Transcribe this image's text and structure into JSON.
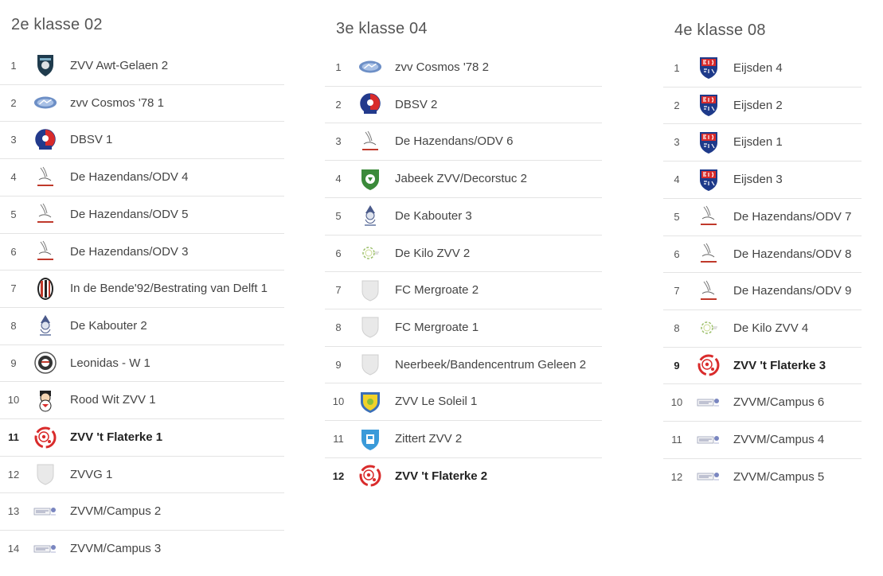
{
  "columns": [
    {
      "title": "2e klasse 02",
      "rows": [
        {
          "pos": "1",
          "team": "ZVV Awt-Gelaen 2",
          "logo": "shield-dark-icon"
        },
        {
          "pos": "2",
          "team": "zvv Cosmos '78 1",
          "logo": "blue-oval-icon"
        },
        {
          "pos": "3",
          "team": "DBSV 1",
          "logo": "red-blue-round-icon"
        },
        {
          "pos": "4",
          "team": "De Hazendans/ODV 4",
          "logo": "hare-icon"
        },
        {
          "pos": "5",
          "team": "De Hazendans/ODV 5",
          "logo": "hare-icon"
        },
        {
          "pos": "6",
          "team": "De Hazendans/ODV 3",
          "logo": "hare-icon"
        },
        {
          "pos": "7",
          "team": "In de Bende'92/Bestrating van Delft 1",
          "logo": "striped-oval-icon"
        },
        {
          "pos": "8",
          "team": "De Kabouter 2",
          "logo": "gnome-icon"
        },
        {
          "pos": "9",
          "team": "Leonidas - W 1",
          "logo": "ball-badge-icon"
        },
        {
          "pos": "10",
          "team": "Rood Wit ZVV 1",
          "logo": "mascot-icon"
        },
        {
          "pos": "11",
          "team": "ZVV 't Flaterke 1",
          "logo": "red-ball-icon",
          "highlight": true
        },
        {
          "pos": "12",
          "team": "ZVVG 1",
          "logo": "blank-shield-icon"
        },
        {
          "pos": "13",
          "team": "ZVVM/Campus 2",
          "logo": "campus-icon"
        },
        {
          "pos": "14",
          "team": "ZVVM/Campus 3",
          "logo": "campus-icon"
        }
      ]
    },
    {
      "title": "3e klasse 04",
      "rows": [
        {
          "pos": "1",
          "team": "zvv Cosmos '78 2",
          "logo": "blue-oval-icon"
        },
        {
          "pos": "2",
          "team": "DBSV 2",
          "logo": "red-blue-round-icon"
        },
        {
          "pos": "3",
          "team": "De Hazendans/ODV 6",
          "logo": "hare-icon"
        },
        {
          "pos": "4",
          "team": "Jabeek ZVV/Decorstuc 2",
          "logo": "green-shield-icon"
        },
        {
          "pos": "5",
          "team": "De Kabouter 3",
          "logo": "gnome-icon"
        },
        {
          "pos": "6",
          "team": "De Kilo ZVV 2",
          "logo": "green-ring-icon"
        },
        {
          "pos": "7",
          "team": "FC Mergroate 2",
          "logo": "blank-shield-icon"
        },
        {
          "pos": "8",
          "team": "FC Mergroate 1",
          "logo": "blank-shield-icon"
        },
        {
          "pos": "9",
          "team": "Neerbeek/Bandencentrum Geleen 2",
          "logo": "blank-shield-icon"
        },
        {
          "pos": "10",
          "team": "ZVV Le Soleil 1",
          "logo": "yellow-shield-icon"
        },
        {
          "pos": "11",
          "team": "Zittert ZVV 2",
          "logo": "blue-shield-icon"
        },
        {
          "pos": "12",
          "team": "ZVV 't Flaterke 2",
          "logo": "red-ball-icon",
          "highlight": true
        }
      ]
    },
    {
      "title": "4e klasse 08",
      "rows": [
        {
          "pos": "1",
          "team": "Eijsden 4",
          "logo": "eijsden-icon"
        },
        {
          "pos": "2",
          "team": "Eijsden 2",
          "logo": "eijsden-icon"
        },
        {
          "pos": "3",
          "team": "Eijsden 1",
          "logo": "eijsden-icon"
        },
        {
          "pos": "4",
          "team": "Eijsden 3",
          "logo": "eijsden-icon"
        },
        {
          "pos": "5",
          "team": "De Hazendans/ODV 7",
          "logo": "hare-icon"
        },
        {
          "pos": "6",
          "team": "De Hazendans/ODV 8",
          "logo": "hare-icon"
        },
        {
          "pos": "7",
          "team": "De Hazendans/ODV 9",
          "logo": "hare-icon"
        },
        {
          "pos": "8",
          "team": "De Kilo ZVV 4",
          "logo": "green-ring-icon"
        },
        {
          "pos": "9",
          "team": "ZVV 't Flaterke 3",
          "logo": "red-ball-icon",
          "highlight": true
        },
        {
          "pos": "10",
          "team": "ZVVM/Campus 6",
          "logo": "campus-icon"
        },
        {
          "pos": "11",
          "team": "ZVVM/Campus 4",
          "logo": "campus-icon"
        },
        {
          "pos": "12",
          "team": "ZVVM/Campus 5",
          "logo": "campus-icon"
        }
      ]
    }
  ]
}
